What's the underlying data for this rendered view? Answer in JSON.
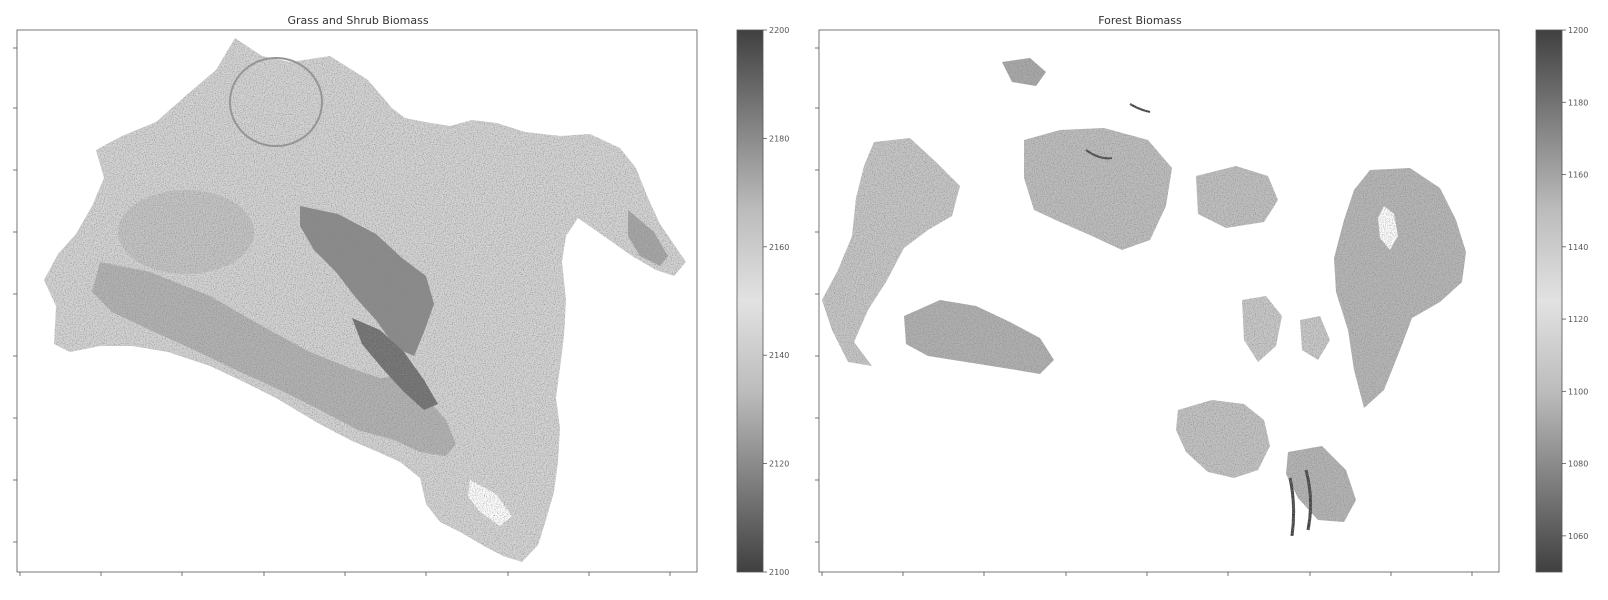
{
  "colors": {
    "background": "#ffffff",
    "axis": "#555555",
    "map_light": "#d4d4d4",
    "map_mid": "#b2b2b2",
    "map_dark": "#7a7a7a",
    "map_darkest": "#333333"
  },
  "colormap": {
    "name": "grayscale-diverging",
    "stops": [
      "#404040",
      "#7f7f7f",
      "#bcbcbc",
      "#e2e2e2",
      "#bcbcbc",
      "#7f7f7f",
      "#404040"
    ]
  },
  "chart_data": [
    {
      "type": "heatmap",
      "title": "Grass and Shrub Biomass",
      "xlabel": "",
      "ylabel": "",
      "grid": false,
      "colorbar": {
        "range": [
          2100,
          2200
        ],
        "ticks": [
          2100,
          2120,
          2140,
          2160,
          2180,
          2200
        ]
      }
    },
    {
      "type": "heatmap",
      "title": "Forest Biomass",
      "xlabel": "",
      "ylabel": "",
      "grid": false,
      "colorbar": {
        "range": [
          1050,
          1200
        ],
        "ticks": [
          1060,
          1080,
          1100,
          1120,
          1140,
          1160,
          1180,
          1200
        ]
      }
    }
  ]
}
